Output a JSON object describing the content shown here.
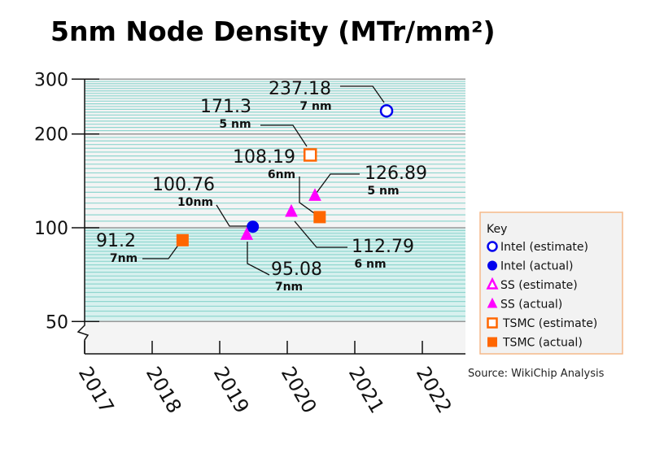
{
  "chart_data": {
    "type": "scatter",
    "title": "5nm Node Density (MTr/mm²)",
    "xlabel": "",
    "ylabel": "",
    "y_scale": "log",
    "ylim": [
      50,
      300
    ],
    "xlim": [
      2017,
      2022.65
    ],
    "y_ticks": [
      300,
      200,
      100,
      50
    ],
    "x_ticks": [
      2017,
      2018,
      2019,
      2020,
      2021,
      2022
    ],
    "legend_title": "Key",
    "legend_placement": "right",
    "series": [
      {
        "name": "Intel (estimate)",
        "marker": "circle-open",
        "color": "#0000ee"
      },
      {
        "name": "Intel (actual)",
        "marker": "circle",
        "color": "#0000ee"
      },
      {
        "name": "SS (estimate)",
        "marker": "triangle-open",
        "color": "#ff00ff"
      },
      {
        "name": "SS (actual)",
        "marker": "triangle",
        "color": "#ff00ff"
      },
      {
        "name": "TSMC (estimate)",
        "marker": "square-open",
        "color": "#ff6600"
      },
      {
        "name": "TSMC (actual)",
        "marker": "square",
        "color": "#ff6600"
      }
    ],
    "points": [
      {
        "series": "Intel (estimate)",
        "x": 2021.47,
        "y": 237.18,
        "label": "237.18",
        "node": "7 nm"
      },
      {
        "series": "TSMC (estimate)",
        "x": 2020.34,
        "y": 171.3,
        "label": "171.3",
        "node": "5 nm"
      },
      {
        "series": "TSMC (actual)",
        "x": 2020.48,
        "y": 108.19,
        "label": "108.19",
        "node": "6nm"
      },
      {
        "series": "SS (actual)",
        "x": 2020.41,
        "y": 126.89,
        "label": "126.89",
        "node": "5 nm"
      },
      {
        "series": "Intel (actual)",
        "x": 2019.49,
        "y": 100.76,
        "label": "100.76",
        "node": "10nm"
      },
      {
        "series": "SS (actual)",
        "x": 2020.06,
        "y": 112.79,
        "label": "112.79",
        "node": "6 nm"
      },
      {
        "series": "SS (actual)",
        "x": 2019.4,
        "y": 95.08,
        "label": "95.08",
        "node": "7nm"
      },
      {
        "series": "TSMC (actual)",
        "x": 2018.45,
        "y": 91.2,
        "label": "91.2",
        "node": "7nm"
      }
    ],
    "source": "Source: WikiChip Analysis"
  }
}
